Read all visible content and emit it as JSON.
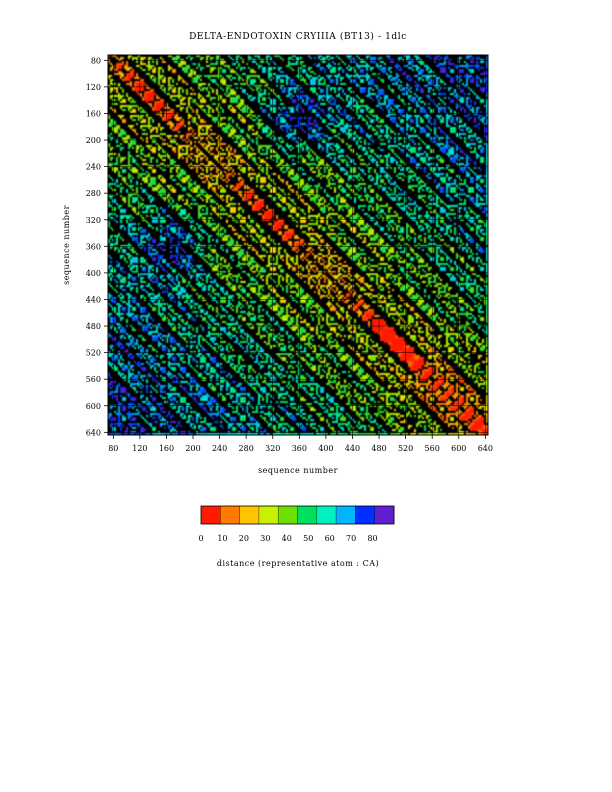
{
  "chart_data": {
    "type": "heatmap",
    "title": "DELTA-ENDOTOXIN CRYIIIA (BT13) - 1dlc",
    "xlabel": "sequence number",
    "ylabel": "sequence number",
    "x_range": [
      72,
      644
    ],
    "y_range": [
      72,
      644
    ],
    "x_ticks": [
      "80",
      "120",
      "160",
      "200",
      "240",
      "280",
      "320",
      "360",
      "400",
      "440",
      "480",
      "520",
      "560",
      "600",
      "640"
    ],
    "y_ticks": [
      "80",
      "120",
      "160",
      "200",
      "240",
      "280",
      "320",
      "360",
      "400",
      "440",
      "480",
      "520",
      "560",
      "600",
      "640"
    ],
    "grid": true,
    "colorbar": {
      "label": "distance (representative atom : CA)",
      "ticks": [
        "0",
        "10",
        "20",
        "30",
        "40",
        "50",
        "60",
        "70",
        "80"
      ],
      "range": [
        0,
        90
      ],
      "colors": [
        "#ff1a00",
        "#ff7a00",
        "#ffc400",
        "#c8f000",
        "#6ee000",
        "#00e060",
        "#00f0c0",
        "#00b4ff",
        "#0030ff",
        "#6020d0"
      ]
    }
  }
}
